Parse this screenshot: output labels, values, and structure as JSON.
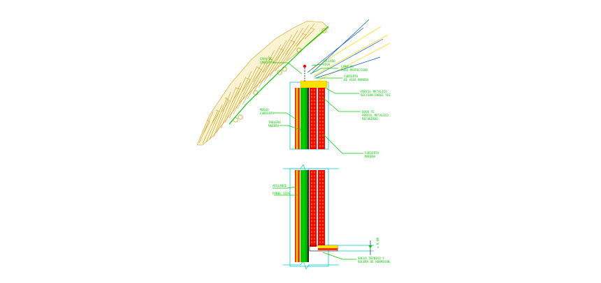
{
  "drawing": {
    "colors": {
      "background": "#ffffff",
      "thatch": "#c8a020",
      "annotation": "#00cc00",
      "wall_fill": "#ff0000",
      "wall_accent": "#ffe000",
      "outline": "#00cccc",
      "roof_lines": "#0055cc",
      "dark_line": "#000000"
    },
    "labels": {
      "thatch_note_1": "CAPA DE",
      "thatch_note_2": "CUBIERTA",
      "ridge_note_1": "SELLADO",
      "ridge_note_2": "VIGA",
      "top_note_1": "CANALON",
      "top_note_2": "PARA PROTECCION",
      "top_note_3": "CUBIERTA",
      "top_note_4": "DE VIGA MADERA",
      "beam_note_1": "PERFIL METALICO",
      "beam_note_2": "SECCION DOBLE TEE",
      "mid_note_1": "DOOR TE",
      "mid_note_2": "PERFIL METALICO",
      "mid_note_3": "REFORZADO",
      "left_note_1": "MUSGO",
      "left_note_2": "CUBIERTA",
      "left_note_3": "TABLERO",
      "left_note_4": "MADERA",
      "bottom_note_1": "CUBIERTA",
      "bottom_note_2": "MADERA",
      "lower_note_1": "AISLANTE",
      "lower_note_2": "PANEL SIPS",
      "base_note_1": "SUELO TECNICO Y",
      "base_note_2": "SOLERA DE HORMIGON",
      "level_note": "± 0.00"
    }
  }
}
